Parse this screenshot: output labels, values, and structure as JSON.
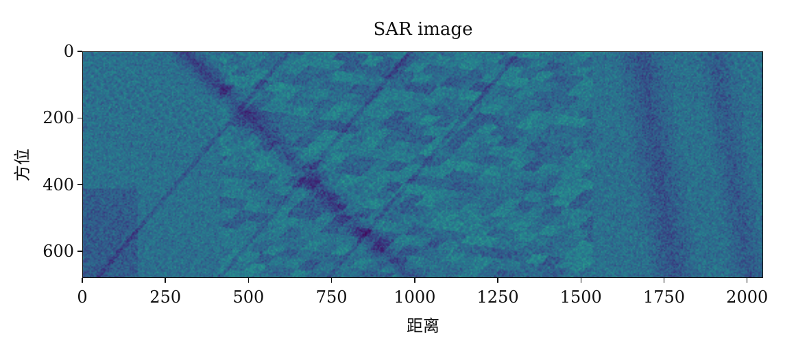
{
  "chart_data": {
    "type": "heatmap",
    "title": "SAR image",
    "xlabel": "距离",
    "ylabel": "方位",
    "xlim": [
      0,
      2048
    ],
    "ylim": [
      680,
      0
    ],
    "xticks": [
      0,
      250,
      500,
      750,
      1000,
      1250,
      1500,
      1750,
      2000
    ],
    "xtick_labels": [
      "0",
      "250",
      "500",
      "750",
      "1000",
      "1250",
      "1500",
      "1750",
      "2000"
    ],
    "yticks": [
      0,
      200,
      400,
      600
    ],
    "ytick_labels": [
      "0",
      "200",
      "400",
      "600"
    ],
    "colormap": "viridis",
    "grid": false,
    "colors": {
      "dark": "#3b2d7a",
      "mid": "#2f6e8e",
      "bright": "#2aa58a"
    }
  }
}
